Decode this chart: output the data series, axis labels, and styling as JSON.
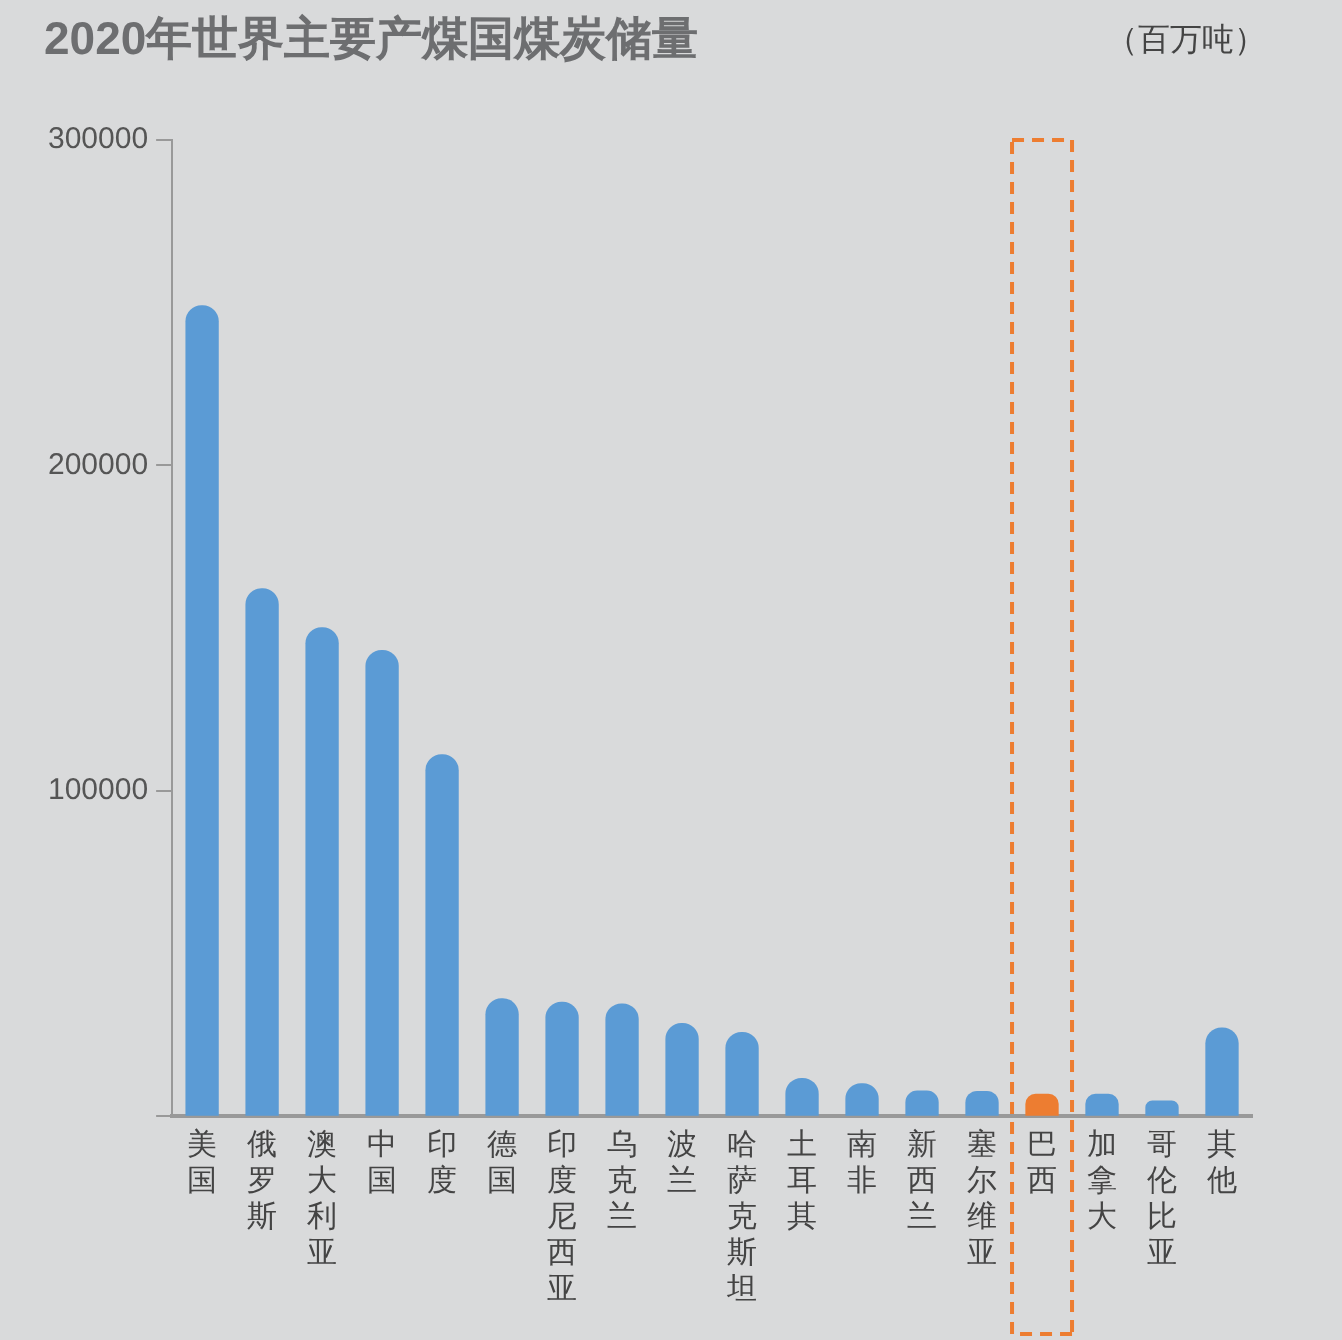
{
  "chart_data": {
    "type": "bar",
    "title": "2020年世界主要产煤国煤炭储量",
    "ylabel": "（百万吨）",
    "categories": [
      "美国",
      "俄罗斯",
      "澳大利亚",
      "中国",
      "印度",
      "德国",
      "印度尼西亚",
      "乌克兰",
      "波兰",
      "哈萨克斯坦",
      "土耳其",
      "南非",
      "新西兰",
      "塞尔维亚",
      "巴西",
      "加拿大",
      "哥伦比亚",
      "其他"
    ],
    "values": [
      249000,
      162000,
      150000,
      143000,
      111000,
      36000,
      34900,
      34400,
      28400,
      25600,
      11500,
      9900,
      7600,
      7500,
      6600,
      6600,
      4600,
      27000
    ],
    "colors": [
      "#5b9bd5",
      "#5b9bd5",
      "#5b9bd5",
      "#5b9bd5",
      "#5b9bd5",
      "#5b9bd5",
      "#5b9bd5",
      "#5b9bd5",
      "#5b9bd5",
      "#5b9bd5",
      "#5b9bd5",
      "#5b9bd5",
      "#5b9bd5",
      "#5b9bd5",
      "#ed7d31",
      "#5b9bd5",
      "#5b9bd5",
      "#5b9bd5"
    ],
    "ylim": [
      0,
      300000
    ],
    "yticks": [
      {
        "value": 0,
        "label": null
      },
      100000,
      200000,
      300000
    ],
    "grid": false,
    "legend": false
  }
}
